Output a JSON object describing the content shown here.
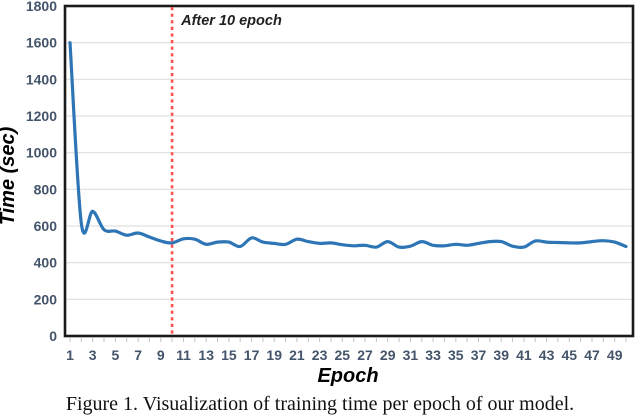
{
  "caption": "Figure 1. Visualization of training time per epoch of our model.",
  "chart_data": {
    "type": "line",
    "title": "",
    "xlabel": "Epoch",
    "ylabel": "Time (sec)",
    "annotation": "After 10 epoch",
    "annotation_x": 10,
    "legend": "none",
    "grid": "horizontal",
    "ylim": [
      0,
      1800
    ],
    "yticks": [
      0,
      200,
      400,
      600,
      800,
      1000,
      1200,
      1400,
      1600,
      1800
    ],
    "xticks": [
      1,
      3,
      5,
      7,
      9,
      11,
      13,
      15,
      17,
      19,
      21,
      23,
      25,
      27,
      29,
      31,
      33,
      35,
      37,
      39,
      41,
      43,
      45,
      47,
      49
    ],
    "x": [
      1,
      2,
      3,
      4,
      5,
      6,
      7,
      8,
      9,
      10,
      11,
      12,
      13,
      14,
      15,
      16,
      17,
      18,
      19,
      20,
      21,
      22,
      23,
      24,
      25,
      26,
      27,
      28,
      29,
      30,
      31,
      32,
      33,
      34,
      35,
      36,
      37,
      38,
      39,
      40,
      41,
      42,
      43,
      44,
      45,
      46,
      47,
      48,
      49,
      50
    ],
    "series": [
      {
        "name": "training time per epoch (sec)",
        "values": [
          1600,
          615,
          680,
          580,
          572,
          550,
          562,
          540,
          518,
          508,
          530,
          528,
          500,
          512,
          512,
          488,
          535,
          512,
          505,
          500,
          528,
          515,
          505,
          508,
          498,
          492,
          495,
          485,
          515,
          485,
          490,
          515,
          495,
          492,
          500,
          495,
          505,
          515,
          515,
          490,
          485,
          518,
          512,
          510,
          508,
          508,
          515,
          520,
          512,
          488
        ]
      }
    ],
    "colors": {
      "line": "#2E75B6",
      "marker_line": "#FF5050",
      "grid": "#D9D9D9",
      "frame": "#1A1A1A",
      "tick_label": "#44546A",
      "minor_tick": "#BFBFBF",
      "axis_title": "#000000",
      "annotation_text": "#1F1F1F"
    }
  }
}
